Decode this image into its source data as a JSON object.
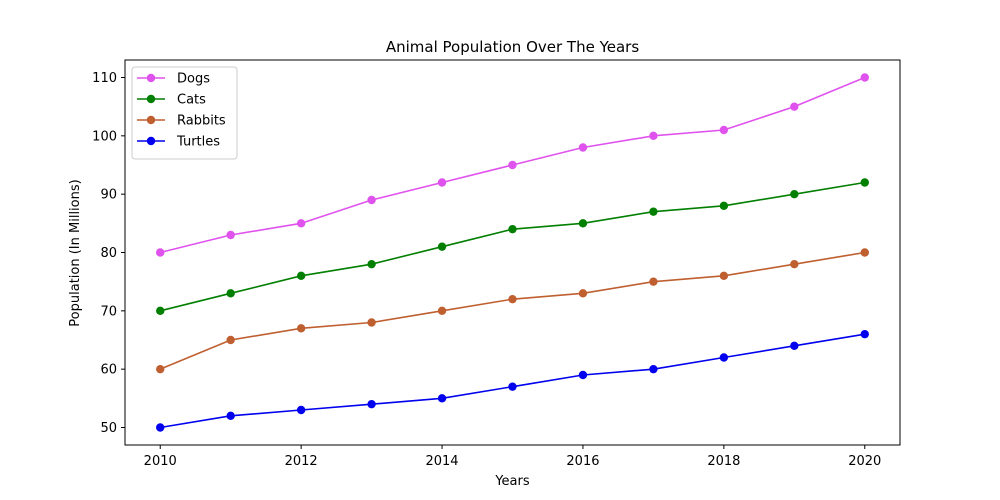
{
  "chart_data": {
    "type": "line",
    "title": "Animal Population Over The Years",
    "xlabel": "Years",
    "ylabel": "Population (In Millions)",
    "x": [
      2010,
      2011,
      2012,
      2013,
      2014,
      2015,
      2016,
      2017,
      2018,
      2019,
      2020
    ],
    "xlim": [
      2009.5,
      2020.5
    ],
    "ylim": [
      47,
      113
    ],
    "xticks": [
      2010,
      2012,
      2014,
      2016,
      2018,
      2020
    ],
    "yticks": [
      50,
      60,
      70,
      80,
      90,
      100,
      110
    ],
    "grid": false,
    "legend_position": "top-left",
    "series": [
      {
        "name": "Dogs",
        "color": "#e052ee",
        "values": [
          80,
          83,
          85,
          89,
          92,
          95,
          98,
          100,
          101,
          105,
          110
        ]
      },
      {
        "name": "Cats",
        "color": "#007f00",
        "values": [
          70,
          73,
          76,
          78,
          81,
          84,
          85,
          87,
          88,
          90,
          92
        ]
      },
      {
        "name": "Rabbits",
        "color": "#bf5f30",
        "values": [
          60,
          65,
          67,
          68,
          70,
          72,
          73,
          75,
          76,
          78,
          80
        ]
      },
      {
        "name": "Turtles",
        "color": "#0000ee",
        "values": [
          50,
          52,
          53,
          54,
          55,
          57,
          59,
          60,
          62,
          64,
          66
        ]
      }
    ]
  }
}
